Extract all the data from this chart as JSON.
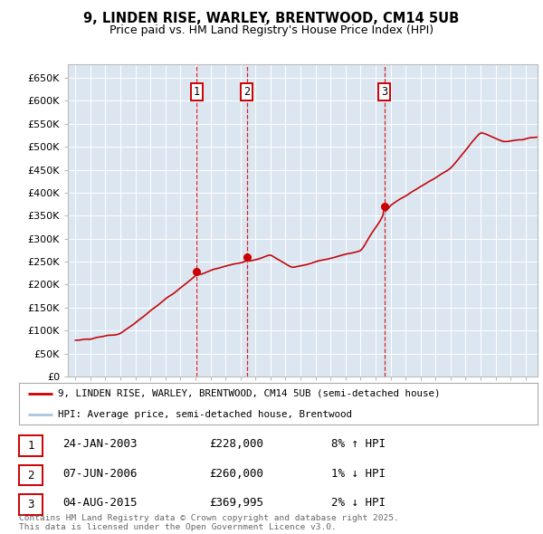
{
  "title_line1": "9, LINDEN RISE, WARLEY, BRENTWOOD, CM14 5UB",
  "title_line2": "Price paid vs. HM Land Registry's House Price Index (HPI)",
  "ylim": [
    0,
    680000
  ],
  "yticks": [
    0,
    50000,
    100000,
    150000,
    200000,
    250000,
    300000,
    350000,
    400000,
    450000,
    500000,
    550000,
    600000,
    650000
  ],
  "ytick_labels": [
    "£0",
    "£50K",
    "£100K",
    "£150K",
    "£200K",
    "£250K",
    "£300K",
    "£350K",
    "£400K",
    "£450K",
    "£500K",
    "£550K",
    "£600K",
    "£650K"
  ],
  "bg_color": "#dce6f1",
  "grid_color": "#ffffff",
  "red_line_color": "#cc0000",
  "blue_line_color": "#aac4dd",
  "sale_dates": [
    2003.07,
    2006.44,
    2015.59
  ],
  "sale_prices": [
    228000,
    260000,
    369995
  ],
  "sale_labels": [
    "1",
    "2",
    "3"
  ],
  "vline_color": "#cc0000",
  "box_color": "#cc0000",
  "legend_label_red": "9, LINDEN RISE, WARLEY, BRENTWOOD, CM14 5UB (semi-detached house)",
  "legend_label_blue": "HPI: Average price, semi-detached house, Brentwood",
  "table_entries": [
    {
      "num": "1",
      "date": "24-JAN-2003",
      "price": "£228,000",
      "change": "8% ↑ HPI"
    },
    {
      "num": "2",
      "date": "07-JUN-2006",
      "price": "£260,000",
      "change": "1% ↓ HPI"
    },
    {
      "num": "3",
      "date": "04-AUG-2015",
      "price": "£369,995",
      "change": "2% ↓ HPI"
    }
  ],
  "footnote": "Contains HM Land Registry data © Crown copyright and database right 2025.\nThis data is licensed under the Open Government Licence v3.0.",
  "xmin": 1994.5,
  "xmax": 2025.8
}
